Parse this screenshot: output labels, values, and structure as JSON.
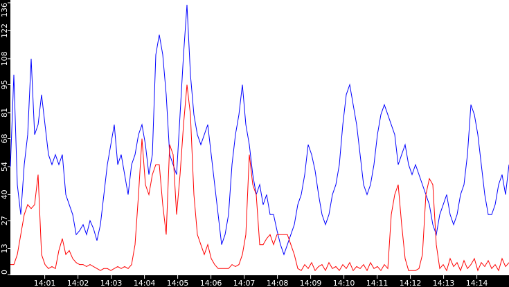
{
  "chart_data": {
    "type": "line",
    "title": "",
    "xlabel": "",
    "ylabel": "",
    "x_start": "13:59:58",
    "interval_seconds": 6.25,
    "x_range": [
      "13:59:58",
      "14:14:58"
    ],
    "ylim": [
      0,
      136
    ],
    "y_ticks": [
      "0",
      "13",
      "27",
      "40",
      "54",
      "68",
      "81",
      "95",
      "108",
      "122",
      "136"
    ],
    "x_ticks": [
      "14:01",
      "14:02",
      "14:03",
      "14:04",
      "14:05",
      "14:06",
      "14:07",
      "14:08",
      "14:09",
      "14:10",
      "14:11",
      "14:12",
      "14:13",
      "14:14"
    ],
    "grid": false,
    "background": "#ffffff",
    "frame_color": "#000000",
    "series": [
      {
        "color": "#0000ff",
        "values": [
          54,
          100,
          45,
          30,
          55,
          70,
          108,
          70,
          75,
          90,
          75,
          60,
          55,
          60,
          55,
          60,
          40,
          35,
          30,
          20,
          22,
          25,
          20,
          27,
          23,
          17,
          25,
          40,
          55,
          65,
          75,
          55,
          60,
          50,
          40,
          55,
          60,
          70,
          75,
          65,
          50,
          60,
          110,
          120,
          110,
          90,
          60,
          55,
          50,
          80,
          110,
          135,
          100,
          80,
          70,
          65,
          70,
          75,
          60,
          45,
          30,
          15,
          20,
          30,
          55,
          70,
          80,
          95,
          75,
          65,
          50,
          40,
          45,
          35,
          40,
          30,
          30,
          22,
          15,
          10,
          15,
          20,
          25,
          35,
          40,
          50,
          65,
          60,
          52,
          40,
          30,
          25,
          30,
          40,
          45,
          55,
          75,
          90,
          95,
          85,
          75,
          60,
          45,
          40,
          45,
          55,
          70,
          80,
          85,
          80,
          75,
          70,
          55,
          60,
          65,
          55,
          50,
          55,
          50,
          45,
          40,
          35,
          25,
          20,
          30,
          35,
          40,
          30,
          25,
          30,
          40,
          45,
          60,
          85,
          80,
          70,
          55,
          40,
          30,
          30,
          35,
          45,
          50,
          40,
          55
        ]
      },
      {
        "color": "#ff0000",
        "values": [
          5,
          5,
          10,
          20,
          30,
          35,
          33,
          35,
          50,
          10,
          5,
          3,
          4,
          3,
          12,
          18,
          10,
          12,
          8,
          6,
          5,
          5,
          4,
          5,
          4,
          3,
          2,
          3,
          3,
          2,
          3,
          4,
          3,
          4,
          3,
          5,
          15,
          40,
          68,
          45,
          40,
          50,
          55,
          55,
          35,
          20,
          65,
          60,
          30,
          50,
          75,
          95,
          80,
          40,
          20,
          15,
          10,
          15,
          8,
          5,
          3,
          3,
          3,
          3,
          5,
          4,
          5,
          10,
          20,
          60,
          45,
          40,
          15,
          15,
          18,
          20,
          15,
          20,
          20,
          20,
          20,
          15,
          10,
          3,
          2,
          5,
          3,
          6,
          2,
          4,
          5,
          2,
          6,
          3,
          4,
          2,
          5,
          3,
          6,
          2,
          4,
          3,
          5,
          2,
          6,
          3,
          4,
          2,
          5,
          3,
          30,
          40,
          45,
          25,
          8,
          2,
          2,
          2,
          3,
          10,
          40,
          48,
          45,
          15,
          3,
          5,
          2,
          8,
          4,
          6,
          2,
          7,
          3,
          5,
          8,
          2,
          6,
          4,
          7,
          3,
          5,
          2,
          8,
          4,
          6
        ]
      }
    ]
  }
}
